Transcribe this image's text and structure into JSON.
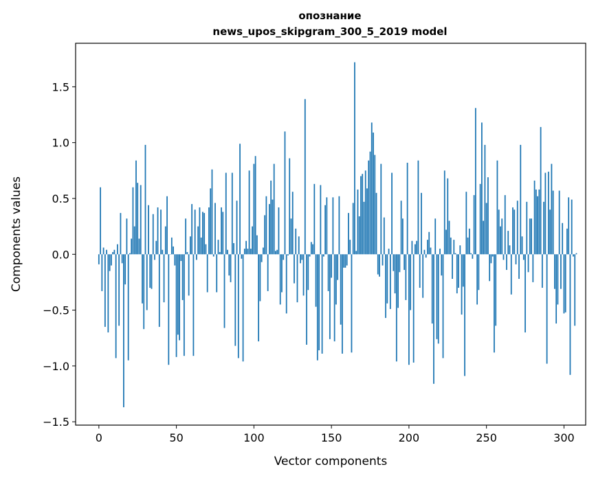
{
  "chart_data": {
    "type": "bar",
    "title_line1": "опознание",
    "title_line2": "news_upos_skipgram_300_5_2019 model",
    "xlabel": "Vector components",
    "ylabel": "Components values",
    "xlim": [
      -15,
      314
    ],
    "ylim": [
      -1.53,
      1.89
    ],
    "xticks": [
      0,
      50,
      100,
      150,
      200,
      250,
      300
    ],
    "xtick_labels": [
      "0",
      "50",
      "100",
      "150",
      "200",
      "250",
      "300"
    ],
    "yticks": [
      -1.5,
      -1.0,
      -0.5,
      0.0,
      0.5,
      1.0,
      1.5
    ],
    "ytick_labels": [
      "−1.5",
      "−1.0",
      "−0.5",
      "0.0",
      "0.5",
      "1.0",
      "1.5"
    ],
    "grid": false,
    "bar_color": "#1f77b4",
    "values": [
      -0.09,
      0.6,
      -0.33,
      0.06,
      -0.65,
      0.04,
      -0.7,
      -0.15,
      -0.1,
      0.02,
      0.04,
      -0.93,
      0.09,
      -0.64,
      0.37,
      -0.08,
      -1.37,
      -0.27,
      0.32,
      -0.95,
      0.01,
      0.14,
      0.6,
      0.25,
      0.84,
      0.64,
      0.14,
      0.62,
      -0.44,
      -0.67,
      0.98,
      -0.5,
      0.44,
      -0.3,
      -0.31,
      0.36,
      -0.05,
      0.12,
      0.42,
      -0.65,
      0.4,
      0.04,
      -0.43,
      0.25,
      0.52,
      -0.99,
      0.0,
      0.15,
      0.07,
      -0.1,
      -0.92,
      -0.72,
      -0.77,
      -0.06,
      -0.41,
      -0.91,
      0.32,
      0.02,
      -0.37,
      0.16,
      0.45,
      -0.91,
      0.4,
      -0.05,
      0.25,
      0.42,
      0.15,
      0.38,
      0.37,
      0.09,
      -0.34,
      0.42,
      0.59,
      0.76,
      -0.02,
      0.46,
      -0.34,
      0.13,
      0.02,
      0.42,
      0.38,
      -0.66,
      0.73,
      0.04,
      -0.19,
      -0.25,
      0.73,
      0.1,
      -0.82,
      0.48,
      -0.93,
      0.99,
      -0.04,
      -0.96,
      0.05,
      0.12,
      0.05,
      0.75,
      0.05,
      0.25,
      0.81,
      0.88,
      0.17,
      -0.78,
      -0.42,
      -0.07,
      0.06,
      0.35,
      0.52,
      -0.33,
      0.45,
      0.66,
      0.49,
      0.81,
      0.03,
      0.04,
      0.42,
      -0.45,
      -0.34,
      -0.05,
      1.1,
      -0.53,
      -0.01,
      0.86,
      0.32,
      0.56,
      -0.26,
      0.23,
      -0.43,
      0.16,
      -0.08,
      -0.05,
      -0.37,
      1.39,
      -0.81,
      -0.32,
      -0.02,
      0.11,
      0.09,
      0.63,
      -0.47,
      -0.95,
      -0.86,
      0.62,
      -0.89,
      -0.02,
      0.44,
      0.51,
      -0.33,
      -0.76,
      -0.21,
      0.51,
      -0.78,
      -0.45,
      -0.23,
      0.52,
      -0.63,
      -0.89,
      -0.12,
      -0.12,
      -0.1,
      0.37,
      0.13,
      -0.88,
      0.46,
      1.72,
      0.03,
      0.58,
      0.34,
      0.7,
      0.72,
      0.47,
      0.75,
      0.59,
      0.84,
      0.92,
      1.18,
      1.09,
      0.89,
      0.55,
      -0.18,
      -0.2,
      0.81,
      -0.1,
      0.33,
      -0.57,
      -0.44,
      0.05,
      -0.49,
      0.73,
      -0.15,
      -0.35,
      -0.96,
      -0.48,
      -0.16,
      0.48,
      0.32,
      -0.14,
      -0.41,
      0.82,
      -0.99,
      -0.5,
      0.12,
      -0.97,
      0.09,
      0.12,
      0.84,
      -0.3,
      0.55,
      -0.39,
      0.04,
      -0.03,
      0.13,
      0.2,
      0.06,
      -0.62,
      -1.16,
      0.32,
      -0.76,
      -0.8,
      0.05,
      -0.19,
      -0.93,
      0.75,
      0.22,
      0.68,
      0.3,
      0.15,
      -0.22,
      0.13,
      0.01,
      -0.35,
      -0.3,
      0.08,
      -0.54,
      -0.29,
      -1.09,
      0.56,
      0.15,
      0.23,
      0.01,
      -0.04,
      0.53,
      1.31,
      -0.45,
      -0.32,
      0.63,
      1.18,
      0.3,
      0.98,
      0.46,
      0.69,
      -0.24,
      -0.08,
      -0.02,
      -0.88,
      -0.64,
      0.84,
      0.4,
      0.25,
      0.32,
      -0.05,
      0.53,
      -0.14,
      0.21,
      0.08,
      -0.36,
      0.42,
      0.4,
      -0.09,
      0.48,
      -0.22,
      0.98,
      0.16,
      -0.05,
      -0.7,
      0.47,
      -0.16,
      0.32,
      0.32,
      -0.25,
      0.66,
      0.58,
      0.52,
      0.58,
      1.14,
      -0.3,
      0.47,
      0.73,
      -0.98,
      0.74,
      0.4,
      0.81,
      0.57,
      -0.31,
      -0.62,
      -0.45,
      0.57,
      -0.31,
      0.28,
      -0.53,
      -0.52,
      0.23,
      0.51,
      -1.08,
      0.49,
      -0.02,
      -0.64,
      0.01
    ]
  }
}
